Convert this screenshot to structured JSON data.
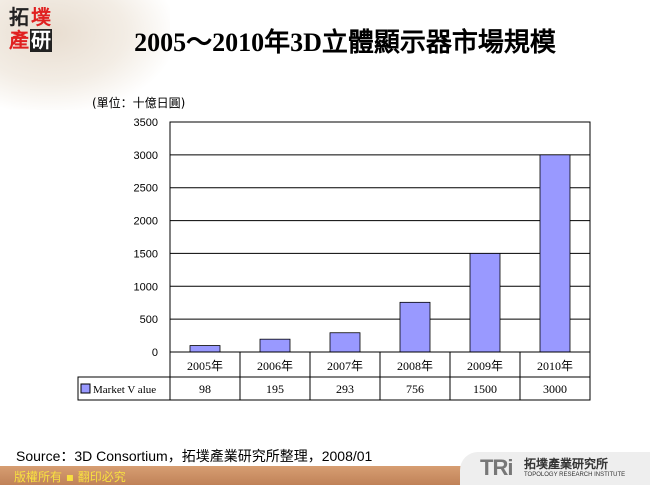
{
  "logo": {
    "chars": [
      "拓",
      "墣",
      "產",
      "研"
    ]
  },
  "title": "2005～2010年3D立體顯示器市場規模",
  "unit_label": "(單位：十億日圓)",
  "chart_data": {
    "type": "bar",
    "title": "2005～2010年3D立體顯示器市場規模",
    "ylabel": "(單位：十億日圓)",
    "categories": [
      "2005年",
      "2006年",
      "2007年",
      "2008年",
      "2009年",
      "2010年"
    ],
    "series": [
      {
        "name": "Market V alue",
        "values": [
          98,
          195,
          293,
          756,
          1500,
          3000
        ]
      }
    ],
    "ylim": [
      0,
      3500
    ],
    "yticks": [
      0,
      500,
      1000,
      1500,
      2000,
      2500,
      3000,
      3500
    ],
    "grid": true,
    "data_table": true,
    "bar_color": "#9999ff"
  },
  "source": "Source：3D Consortium，拓墣產業研究所整理，2008/01",
  "footer": {
    "copyright": "版權所有 ▪ 翻印必究",
    "brand": "TRi",
    "brand_cn": "拓墣產業研究所",
    "brand_en": "TOPOLOGY RESEARCH INSTITUTE"
  }
}
